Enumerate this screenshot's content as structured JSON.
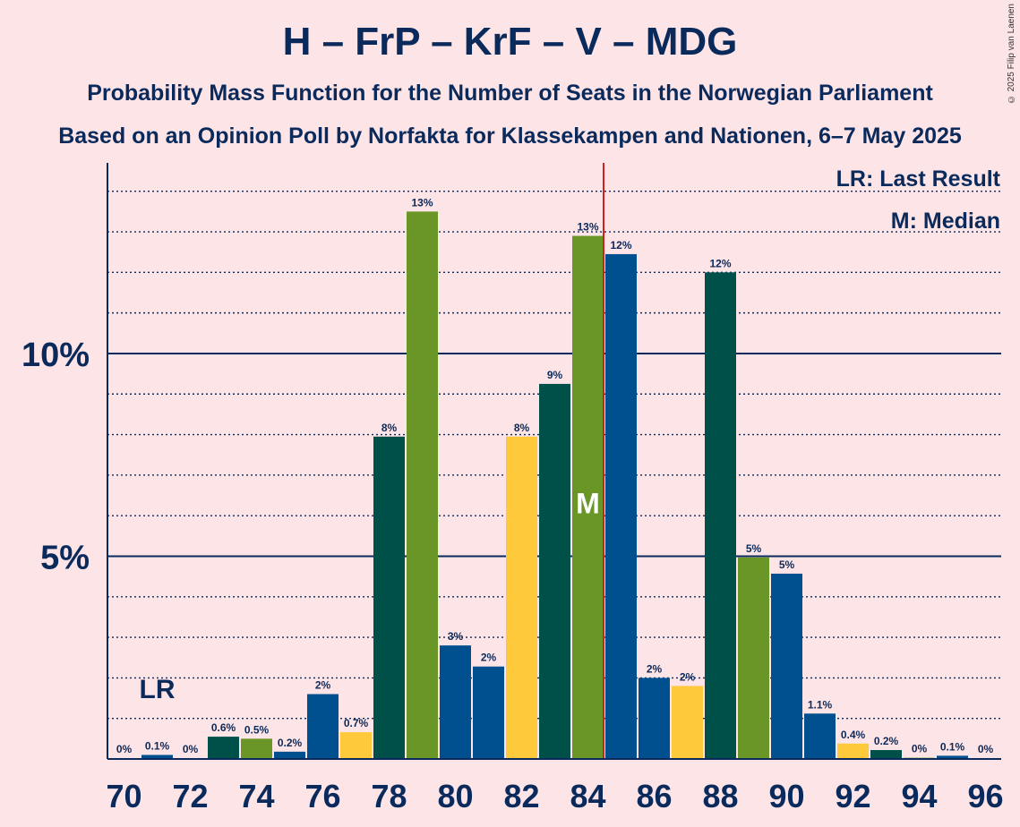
{
  "title": "H – FrP – KrF – V – MDG",
  "subtitle1": "Probability Mass Function for the Number of Seats in the Norwegian Parliament",
  "subtitle2": "Based on an Opinion Poll by Norfakta for Klassekampen and Nationen, 6–7 May 2025",
  "copyright": "© 2025 Filip van Laenen",
  "legend": {
    "lr": "LR: Last Result",
    "m": "M: Median"
  },
  "markers": {
    "lr_label": "LR",
    "median_label": "M"
  },
  "colors": {
    "background": "#fde4e6",
    "text": "#0b2a5c",
    "darkgreen": "#00504a",
    "olive": "#6a9627",
    "blue": "#00508f",
    "yellow": "#ffc93c",
    "majority_line": "#cc2222"
  },
  "chart_data": {
    "type": "bar",
    "xlabel": "",
    "ylabel": "",
    "ylim": [
      0,
      14.7
    ],
    "y_ticks": [
      {
        "value": 5,
        "label": "5%"
      },
      {
        "value": 10,
        "label": "10%"
      }
    ],
    "x_tick_labels": [
      "70",
      "72",
      "74",
      "76",
      "78",
      "80",
      "82",
      "84",
      "86",
      "88",
      "90",
      "92",
      "94",
      "96"
    ],
    "categories": [
      70,
      71,
      72,
      73,
      74,
      75,
      76,
      77,
      78,
      79,
      80,
      81,
      82,
      83,
      84,
      85,
      86,
      87,
      88,
      89,
      90,
      91,
      92,
      93,
      94,
      95,
      96
    ],
    "values": [
      0.02,
      0.1,
      0.02,
      0.55,
      0.5,
      0.18,
      1.6,
      0.66,
      7.95,
      13.5,
      2.8,
      2.28,
      7.95,
      9.25,
      12.9,
      12.45,
      2.0,
      1.8,
      12.0,
      4.97,
      4.57,
      1.12,
      0.38,
      0.22,
      0.03,
      0.08,
      0.02
    ],
    "labels": [
      "0%",
      "0.1%",
      "0%",
      "0.6%",
      "0.5%",
      "0.2%",
      "2%",
      "0.7%",
      "8%",
      "13%",
      "3%",
      "2%",
      "8%",
      "9%",
      "13%",
      "12%",
      "2%",
      "2%",
      "12%",
      "5%",
      "5%",
      "1.1%",
      "0.4%",
      "0.2%",
      "0%",
      "0.1%",
      "0%"
    ],
    "bar_colors": [
      "darkgreen",
      "blue",
      "darkgreen",
      "darkgreen",
      "olive",
      "blue",
      "blue",
      "yellow",
      "darkgreen",
      "olive",
      "blue",
      "blue",
      "yellow",
      "darkgreen",
      "olive",
      "blue",
      "blue",
      "yellow",
      "darkgreen",
      "olive",
      "blue",
      "blue",
      "yellow",
      "darkgreen",
      "olive",
      "blue",
      "blue"
    ],
    "last_result": 71,
    "median": 84,
    "majority": 85,
    "grid": true
  }
}
